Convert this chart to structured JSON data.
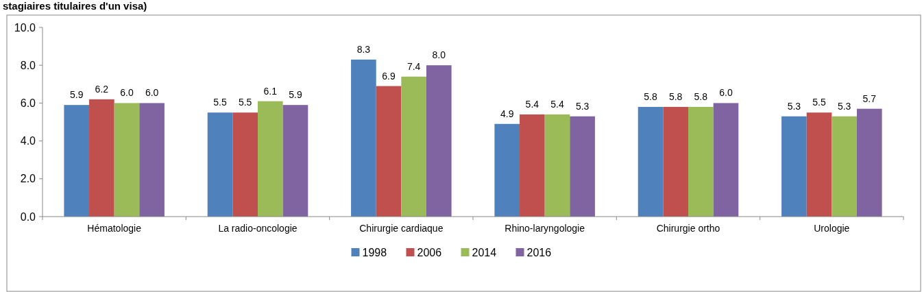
{
  "chart_data": {
    "type": "bar",
    "title": "stagiaires titulaires d'un visa)",
    "categories": [
      "Hématologie",
      "La radio-oncologie",
      "Chirurgie cardiaque",
      "Rhino-laryngologie",
      "Chirurgie ortho",
      "Urologie"
    ],
    "series": [
      {
        "name": "1998",
        "color": "#4f81bd",
        "values": [
          5.9,
          5.5,
          8.3,
          4.9,
          5.8,
          5.3
        ],
        "value_labels": [
          "5.9",
          "5.5",
          "8.3",
          "4.9",
          "5.8",
          "5.3"
        ]
      },
      {
        "name": "2006",
        "color": "#c0504d",
        "values": [
          6.2,
          5.5,
          6.9,
          5.4,
          5.8,
          5.5
        ],
        "value_labels": [
          "6.2",
          "5.5",
          "6.9",
          "5.4",
          "5.8",
          "5.5"
        ]
      },
      {
        "name": "2014",
        "color": "#9bbb59",
        "values": [
          6.0,
          6.1,
          7.4,
          5.4,
          5.8,
          5.3
        ],
        "value_labels": [
          "6.0",
          "6.1",
          "7.4",
          "5.4",
          "5.8",
          "5.3"
        ]
      },
      {
        "name": "2016",
        "color": "#8064a2",
        "values": [
          6.0,
          5.9,
          8.0,
          5.3,
          6.0,
          5.7
        ],
        "value_labels": [
          "6.0",
          "5.9",
          "8.0",
          "5.3",
          "6.0",
          "5.7"
        ]
      }
    ],
    "ylim": [
      0,
      10
    ],
    "yticks": [
      {
        "value": 0,
        "label": "0.0"
      },
      {
        "value": 2,
        "label": "2.0"
      },
      {
        "value": 4,
        "label": "4.0"
      },
      {
        "value": 6,
        "label": "6.0"
      },
      {
        "value": 8,
        "label": "8.0"
      },
      {
        "value": 10,
        "label": "10.0"
      }
    ],
    "legend": "bottom",
    "grid": false
  }
}
